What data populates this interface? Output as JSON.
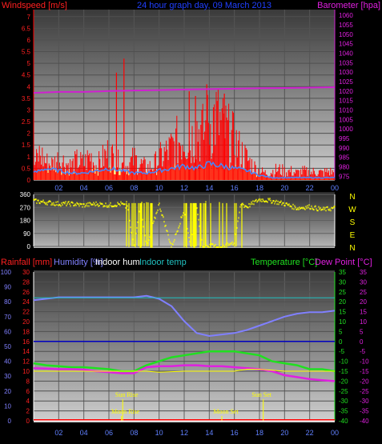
{
  "header": {
    "title": "24 hour graph day, 09 March 2013",
    "left_label": "Windspeed [m/s]",
    "right_label": "Barometer [hpa]"
  },
  "panel2": {
    "direction_labels": [
      "N",
      "W",
      "S",
      "E",
      "N"
    ]
  },
  "panel3": {
    "labels": {
      "rainfall": "Rainfall [mm]",
      "humidity": "Humidity [%]",
      "indoor_hum": "Indoor hum",
      "indoor_temp": "Indoor temp",
      "temperature": "Temperature [°C]",
      "dew_point": "Dew Point [°C]"
    },
    "events": [
      {
        "label": "Sun Rise",
        "hour": 7.1
      },
      {
        "label": "Moon Rise",
        "hour": 7.0
      },
      {
        "label": "Moon Set",
        "hour": 15.0
      },
      {
        "label": "Sun Set",
        "hour": 18.3
      }
    ]
  },
  "x_ticks": [
    "02",
    "04",
    "06",
    "08",
    "10",
    "12",
    "14",
    "16",
    "18",
    "20",
    "22",
    "00"
  ],
  "colors": {
    "wind": "#ff0000",
    "wind_avg": "#4488ff",
    "wind_bar": "#ffff80",
    "barometer": "#d020d0",
    "direction": "#ffff00",
    "rain_label": "#ff2020",
    "humidity": "#8080ff",
    "indoor_hum": "#ffffff",
    "indoor_temp": "#20c0c0",
    "temperature": "#20e020",
    "dew_point": "#e020e0",
    "grid_red": "#ff0000",
    "axis_yellow": "#ffff00"
  },
  "chart_data": [
    {
      "type": "line",
      "title": "24 hour graph day, 09 March 2013",
      "x_unit": "hour",
      "x_range": [
        0,
        24
      ],
      "y_left_label": "Windspeed [m/s]",
      "y_left_ticks": [
        0,
        0.5,
        1,
        1.5,
        2,
        2.5,
        3,
        3.5,
        4,
        4.5,
        5,
        5.5,
        6,
        6.5,
        7
      ],
      "y_left_range": [
        0,
        7.3
      ],
      "y_right_label": "Barometer [hpa]",
      "y_right_ticks": [
        975,
        980,
        985,
        990,
        995,
        1000,
        1005,
        1010,
        1015,
        1020,
        1025,
        1030,
        1035,
        1040,
        1045,
        1050,
        1055,
        1060
      ],
      "y_right_range": [
        973,
        1063
      ],
      "series": [
        {
          "name": "Windspeed",
          "x": [
            0,
            0.5,
            1,
            1.5,
            2,
            2.5,
            3,
            3.5,
            4,
            4.5,
            5,
            5.5,
            6,
            6.5,
            7,
            7.5,
            8,
            8.5,
            9,
            9.5,
            10,
            10.5,
            11,
            11.5,
            12,
            12.5,
            13,
            13.5,
            14,
            14.5,
            15,
            15.5,
            16,
            16.5,
            17,
            17.5,
            18,
            18.5,
            19,
            19.5,
            20,
            20.5,
            21,
            21.5,
            22,
            22.5,
            23,
            23.5,
            24
          ],
          "values": [
            0.8,
            1.5,
            1.0,
            0.9,
            1.2,
            1.0,
            0.8,
            1.1,
            0.9,
            1.4,
            0.8,
            1.2,
            1.6,
            1.1,
            0.9,
            0.8,
            1.2,
            0.9,
            0.7,
            0.8,
            1.2,
            1.5,
            1.8,
            2.2,
            2.6,
            2.2,
            3.0,
            2.6,
            3.2,
            3.6,
            3.0,
            2.6,
            2.2,
            1.6,
            1.2,
            0.8,
            0.5,
            0.4,
            0.5,
            0.6,
            0.5,
            0.5,
            0.4,
            0.5,
            0.4,
            0.5,
            0.4,
            0.5,
            0.4
          ]
        },
        {
          "name": "Wind average",
          "x": [
            0,
            1,
            2,
            3,
            4,
            5,
            6,
            7,
            8,
            9,
            10,
            11,
            12,
            13,
            14,
            15,
            16,
            17,
            18,
            19,
            20,
            21,
            22,
            23,
            24
          ],
          "values": [
            0.3,
            0.5,
            0.4,
            0.3,
            0.3,
            0.4,
            0.5,
            0.4,
            0.3,
            0.3,
            0.4,
            0.5,
            0.6,
            0.5,
            0.7,
            0.6,
            0.5,
            0.4,
            0.2,
            0.1,
            0.1,
            0.1,
            0.1,
            0.1,
            0.1
          ]
        },
        {
          "name": "Barometer",
          "x": [
            0,
            2,
            4,
            6,
            8,
            10,
            12,
            14,
            16,
            18,
            20,
            22,
            24
          ],
          "values": [
            1019,
            1019.5,
            1019.5,
            1020,
            1020.3,
            1020.5,
            1020.8,
            1021,
            1021.2,
            1021.5,
            1021.6,
            1021.8,
            1022
          ]
        }
      ]
    },
    {
      "type": "scatter",
      "title": "",
      "x_unit": "hour",
      "x_range": [
        0,
        24
      ],
      "y_ticks": [
        0,
        90,
        180,
        270,
        360
      ],
      "y_range": [
        0,
        360
      ],
      "series": [
        {
          "name": "Wind direction",
          "x": [
            0,
            1,
            2,
            3,
            4,
            5,
            6,
            7,
            7.5,
            8,
            8.5,
            9,
            10,
            11,
            12,
            12.5,
            13,
            13.5,
            14,
            15,
            16,
            16.5,
            17,
            18,
            19,
            20,
            21,
            22,
            23,
            24
          ],
          "values": [
            320,
            310,
            300,
            300,
            290,
            300,
            290,
            300,
            270,
            0,
            280,
            0,
            300,
            0,
            260,
            20,
            270,
            0,
            10,
            0,
            30,
            300,
            280,
            330,
            320,
            300,
            270,
            280,
            260,
            270
          ]
        }
      ]
    },
    {
      "type": "line",
      "title": "",
      "x_unit": "hour",
      "x_range": [
        0,
        24
      ],
      "y_left_outer_label": "Humidity [%]",
      "y_left_outer_ticks": [
        0,
        10,
        20,
        30,
        40,
        50,
        60,
        70,
        80,
        90,
        100
      ],
      "y_left_inner_label": "Rainfall [mm]",
      "y_left_inner_ticks": [
        0,
        2,
        4,
        6,
        8,
        10,
        12,
        14,
        16,
        18,
        20,
        22,
        24,
        26,
        28,
        30
      ],
      "y_right_label": "Temperature [°C]",
      "y_right_ticks": [
        -40,
        -35,
        -30,
        -25,
        -20,
        -15,
        -10,
        -5,
        0,
        5,
        10,
        15,
        20,
        25,
        30,
        35
      ],
      "y_right_range": [
        -40,
        35
      ],
      "series": [
        {
          "name": "Humidity [%]",
          "x": [
            0,
            2,
            4,
            6,
            8,
            9,
            10,
            11,
            12,
            13,
            14,
            15,
            16,
            17,
            18,
            19,
            20,
            21,
            22,
            23,
            24
          ],
          "values": [
            81,
            83,
            83,
            83,
            83,
            84,
            82,
            77,
            67,
            59,
            57,
            58,
            59,
            61,
            64,
            67,
            70,
            72,
            73,
            73,
            74
          ]
        },
        {
          "name": "Indoor temp",
          "x": [
            0,
            4,
            8,
            12,
            16,
            20,
            24
          ],
          "values": [
            22,
            22,
            22,
            22,
            22,
            22,
            22
          ]
        },
        {
          "name": "Temperature [°C]",
          "x": [
            0,
            1,
            2,
            3,
            4,
            5,
            6,
            7,
            8,
            9,
            10,
            11,
            12,
            13,
            14,
            15,
            16,
            17,
            18,
            19,
            20,
            21,
            22,
            23,
            24
          ],
          "values": [
            -11,
            -12,
            -12.5,
            -13,
            -13,
            -13.5,
            -14,
            -15,
            -15,
            -12,
            -10,
            -8,
            -7,
            -6,
            -5,
            -5,
            -5,
            -6,
            -7,
            -10,
            -11,
            -12,
            -14,
            -14,
            -15
          ]
        },
        {
          "name": "Dew Point [°C]",
          "x": [
            0,
            1,
            2,
            3,
            4,
            5,
            6,
            7,
            8,
            9,
            10,
            11,
            12,
            13,
            14,
            15,
            16,
            17,
            18,
            19,
            20,
            21,
            22,
            23,
            24
          ],
          "values": [
            -13.5,
            -13.7,
            -14,
            -14,
            -14.2,
            -15,
            -15.5,
            -16,
            -16,
            -13,
            -12.5,
            -12.5,
            -12,
            -12,
            -12.5,
            -12.5,
            -13,
            -13.5,
            -14,
            -15,
            -17,
            -18,
            -19,
            -19.5,
            -20
          ]
        },
        {
          "name": "Indoor hum",
          "x": [
            0,
            4,
            8,
            9,
            10,
            12,
            14,
            16,
            17,
            18,
            20,
            24
          ],
          "values": [
            -15,
            -15,
            -15,
            -15,
            -15.5,
            -15,
            -15,
            -15,
            -14,
            -14,
            -15,
            -15
          ]
        },
        {
          "name": "Rainfall [mm]",
          "x": [
            0,
            24
          ],
          "values": [
            0,
            0
          ]
        }
      ]
    }
  ]
}
